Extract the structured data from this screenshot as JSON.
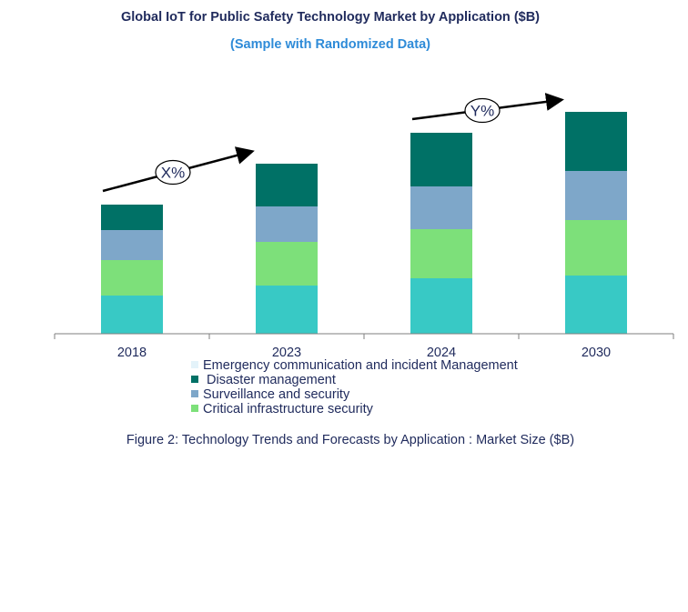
{
  "chart_data": {
    "type": "bar",
    "stacked": true,
    "title": "Global IoT for Public Safety Technology Market by Application ($B)",
    "subtitle": "(Sample with Randomized Data)",
    "categories": [
      "2018",
      "2023",
      "2024",
      "2030"
    ],
    "series": [
      {
        "name": "Emergency communication and incident Management",
        "color": "#38c9c5",
        "values": [
          42,
          53,
          61,
          64
        ]
      },
      {
        "name": "Critical infrastructure security",
        "color": "#7de07a",
        "values": [
          39,
          48,
          54,
          61
        ]
      },
      {
        "name": "Surveillance and security",
        "color": "#7ea7c9",
        "values": [
          33,
          39,
          47,
          54
        ]
      },
      {
        "name": "Disaster management",
        "color": "#007166",
        "values": [
          28,
          47,
          59,
          65
        ]
      }
    ],
    "ylim": [
      0,
      260
    ],
    "legend_order": [
      {
        "label": "Emergency communication and incident Management",
        "color": "#e4f3fa"
      },
      {
        "label": " Disaster management",
        "color": "#007166"
      },
      {
        "label": "Surveillance and security",
        "color": "#7ea7c9"
      },
      {
        "label": "Critical infrastructure security",
        "color": "#7de07a"
      }
    ],
    "annotations": [
      {
        "text": "X%",
        "from": "2018",
        "to": "2023"
      },
      {
        "text": "Y%",
        "from": "2024",
        "to": "2030"
      }
    ],
    "caption": "Figure 2: Technology  Trends  and Forecasts by Application : Market Size ($B)"
  }
}
